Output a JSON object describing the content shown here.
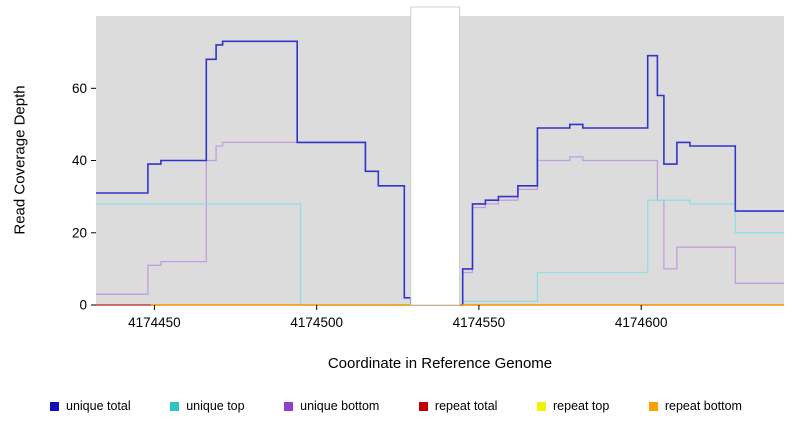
{
  "chart_data": {
    "type": "line",
    "step": "hv",
    "title": "",
    "xlabel": "Coordinate in Reference Genome",
    "ylabel": "Read Coverage Depth",
    "xlim": [
      4174432,
      4174644
    ],
    "ylim": [
      0,
      80
    ],
    "xticks": [
      4174450,
      4174500,
      4174550,
      4174600
    ],
    "yticks": [
      0,
      20,
      40,
      60
    ],
    "plot_background": "#dcdcdc",
    "page_background": "#ffffff",
    "masked_region": {
      "x_start": 4174529,
      "x_end": 4174544
    },
    "series": [
      {
        "name": "unique total",
        "color": "#3333cc",
        "legend_color": "#0f0fbe",
        "width": 1.6,
        "z": 3,
        "points": [
          [
            4174432,
            31
          ],
          [
            4174448,
            39
          ],
          [
            4174452,
            40
          ],
          [
            4174466,
            68
          ],
          [
            4174469,
            72
          ],
          [
            4174471,
            73
          ],
          [
            4174494,
            45
          ],
          [
            4174515,
            37
          ],
          [
            4174519,
            33
          ],
          [
            4174527,
            2
          ],
          [
            4174529,
            0
          ],
          [
            4174545,
            10
          ],
          [
            4174548,
            28
          ],
          [
            4174552,
            29
          ],
          [
            4174556,
            30
          ],
          [
            4174562,
            33
          ],
          [
            4174568,
            49
          ],
          [
            4174578,
            50
          ],
          [
            4174582,
            49
          ],
          [
            4174602,
            69
          ],
          [
            4174605,
            58
          ],
          [
            4174607,
            39
          ],
          [
            4174611,
            45
          ],
          [
            4174615,
            44
          ],
          [
            4174629,
            26
          ]
        ]
      },
      {
        "name": "unique top",
        "color": "#8fe0e0",
        "legend_color": "#2cc4c4",
        "width": 1.3,
        "z": 2,
        "points": [
          [
            4174432,
            28
          ],
          [
            4174495,
            0
          ],
          [
            4174545,
            1
          ],
          [
            4174568,
            9
          ],
          [
            4174602,
            29
          ],
          [
            4174615,
            28
          ],
          [
            4174629,
            20
          ]
        ]
      },
      {
        "name": "unique bottom",
        "color": "#bfa0de",
        "legend_color": "#9340c9",
        "width": 1.3,
        "z": 1,
        "points": [
          [
            4174432,
            3
          ],
          [
            4174448,
            11
          ],
          [
            4174452,
            12
          ],
          [
            4174466,
            40
          ],
          [
            4174469,
            44
          ],
          [
            4174471,
            45
          ],
          [
            4174515,
            37
          ],
          [
            4174519,
            33
          ],
          [
            4174527,
            2
          ],
          [
            4174529,
            0
          ],
          [
            4174545,
            9
          ],
          [
            4174548,
            27
          ],
          [
            4174552,
            28
          ],
          [
            4174556,
            29
          ],
          [
            4174562,
            32
          ],
          [
            4174568,
            40
          ],
          [
            4174578,
            41
          ],
          [
            4174582,
            40
          ],
          [
            4174605,
            29
          ],
          [
            4174607,
            10
          ],
          [
            4174611,
            16
          ],
          [
            4174629,
            6
          ]
        ]
      },
      {
        "name": "repeat total",
        "color": "#b22222",
        "legend_color": "#c00000",
        "width": 1.3,
        "z": 4,
        "points": [
          [
            4174432,
            0
          ]
        ]
      },
      {
        "name": "repeat top",
        "color": "#efef10",
        "legend_color": "#f2f200",
        "width": 1.3,
        "z": 5,
        "points": [
          [
            4174449,
            0
          ]
        ]
      },
      {
        "name": "repeat bottom",
        "color": "#ff9900",
        "legend_color": "#ff9f00",
        "width": 1.3,
        "z": 6,
        "points": [
          [
            4174449,
            0
          ]
        ]
      }
    ]
  }
}
